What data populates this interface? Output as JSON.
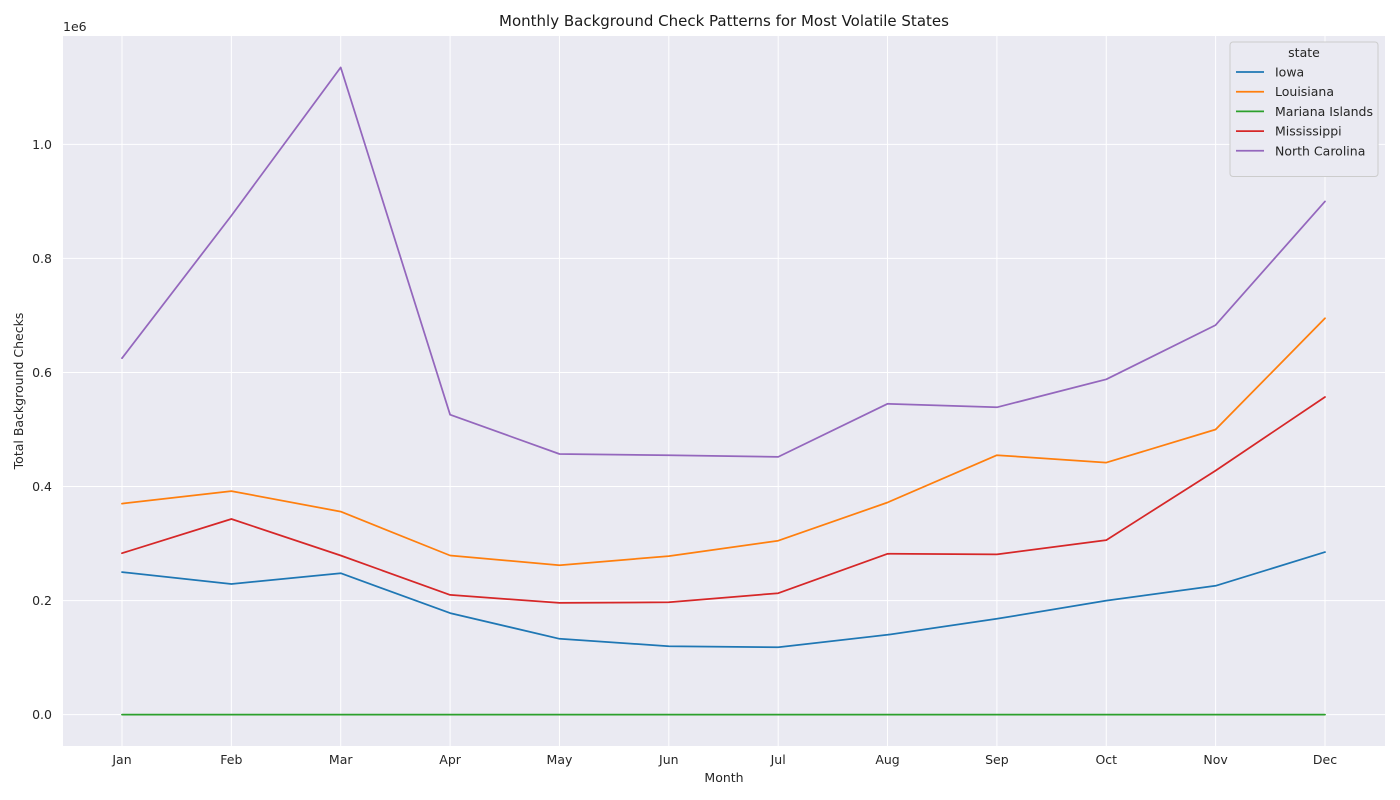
{
  "chart_data": {
    "type": "line",
    "title": "Monthly Background Check Patterns for Most Volatile States",
    "xlabel": "Month",
    "ylabel": "Total Background Checks",
    "y_scale_note": "1e6",
    "categories": [
      "Jan",
      "Feb",
      "Mar",
      "Apr",
      "May",
      "Jun",
      "Jul",
      "Aug",
      "Sep",
      "Oct",
      "Nov",
      "Dec"
    ],
    "ylim": [
      -55000,
      1190000
    ],
    "yticks": [
      0.0,
      0.2,
      0.4,
      0.6,
      0.8,
      1.0
    ],
    "ytick_labels": [
      "0.0",
      "0.2",
      "0.4",
      "0.6",
      "0.8",
      "1.0"
    ],
    "grid": true,
    "legend": {
      "title": "state",
      "placement": "top-right"
    },
    "series": [
      {
        "name": "Iowa",
        "color": "#1f77b4",
        "values": [
          250000,
          229000,
          248000,
          178000,
          133000,
          120000,
          118000,
          140000,
          168000,
          200000,
          226000,
          285000
        ]
      },
      {
        "name": "Louisiana",
        "color": "#ff7f0e",
        "values": [
          370000,
          392000,
          356000,
          279000,
          262000,
          278000,
          305000,
          372000,
          455000,
          442000,
          500000,
          695000
        ]
      },
      {
        "name": "Mariana Islands",
        "color": "#2ca02c",
        "values": [
          100,
          100,
          100,
          100,
          100,
          100,
          100,
          100,
          100,
          100,
          100,
          100
        ]
      },
      {
        "name": "Mississippi",
        "color": "#d62728",
        "values": [
          283000,
          343000,
          279000,
          210000,
          196000,
          197000,
          213000,
          282000,
          281000,
          306000,
          428000,
          557000
        ]
      },
      {
        "name": "North Carolina",
        "color": "#9467bd",
        "values": [
          625000,
          875000,
          1135000,
          526000,
          457000,
          455000,
          452000,
          545000,
          539000,
          588000,
          683000,
          900000
        ]
      }
    ]
  }
}
